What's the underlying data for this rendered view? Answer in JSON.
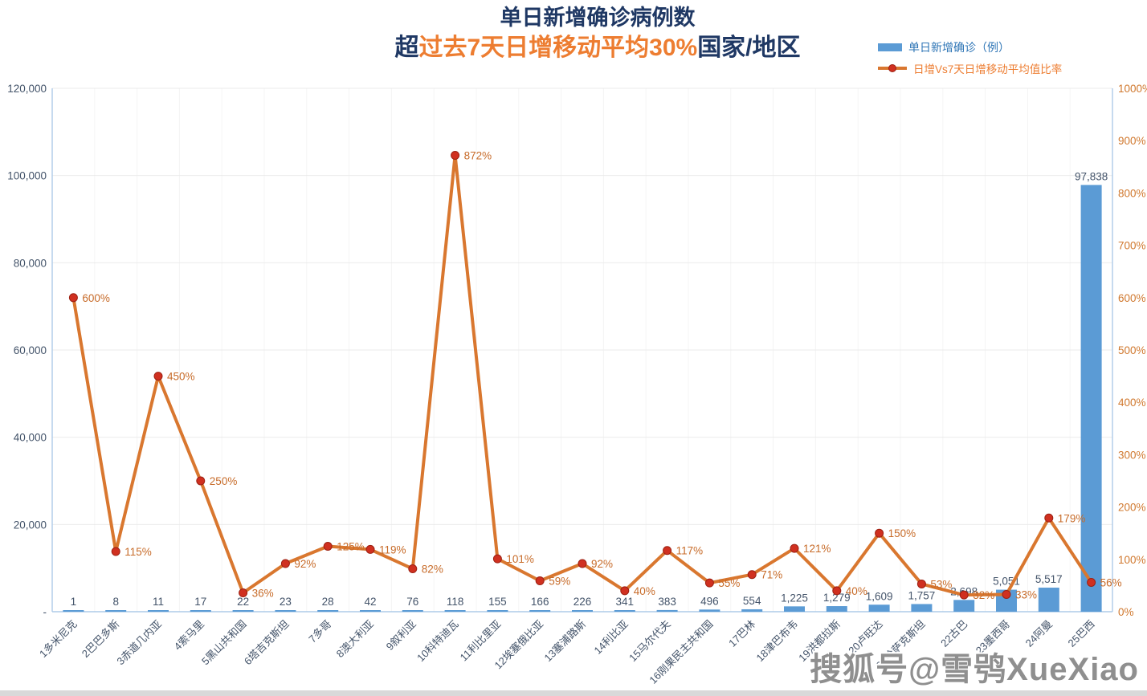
{
  "title": "单日新增确诊病例数",
  "subtitle": {
    "prefix": "超",
    "highlight": "过去7天日增移动平均30%",
    "suffix": "国家/地区"
  },
  "legend": {
    "bar_label": "单日新增确诊（例）",
    "line_label": "日增Vs7天日增移动平均值比率"
  },
  "watermark": "搜狐号@雪鸮XueXiao",
  "colors": {
    "title_navy": "#1F3864",
    "accent_orange": "#ED7D31",
    "bar": "#5B9BD5",
    "bar_label": "#44546A",
    "line": "#D9772F",
    "marker_fill": "#D03020",
    "marker_stroke": "#9C2012",
    "line_label": "#C76B29",
    "left_axis_text": "#44546A",
    "right_axis_text": "#D0782E",
    "grid_h": "#EBEBEB",
    "grid_v": "#F4F4F4",
    "plot_border": "#AECBE8",
    "x_label": "#44546A"
  },
  "chart_data": {
    "type": "bar",
    "combo": "bar+line",
    "title": "单日新增确诊病例数 超过去7天日增移动平均30%国家/地区",
    "categories": [
      "1多米尼克",
      "2巴巴多斯",
      "3赤道几内亚",
      "4索马里",
      "5黑山共和国",
      "6塔吉克斯坦",
      "7多哥",
      "8澳大利亚",
      "9叙利亚",
      "10科特迪瓦",
      "11利比里亚",
      "12埃塞俄比亚",
      "13塞浦路斯",
      "14利比亚",
      "15马尔代夫",
      "16刚果民主共和国",
      "17巴林",
      "18津巴布韦",
      "19洪都拉斯",
      "20卢旺达",
      "21哈萨克斯坦",
      "22古巴",
      "23墨西哥",
      "24阿曼",
      "25巴西"
    ],
    "series": [
      {
        "name": "单日新增确诊（例）",
        "type": "bar",
        "axis": "left",
        "values": [
          1,
          8,
          11,
          17,
          22,
          23,
          28,
          42,
          76,
          118,
          155,
          166,
          226,
          341,
          383,
          496,
          554,
          1225,
          1279,
          1609,
          1757,
          2698,
          5051,
          5517,
          97838
        ],
        "labels": [
          "1",
          "8",
          "11",
          "17",
          "22",
          "23",
          "28",
          "42",
          "76",
          "118",
          "155",
          "166",
          "226",
          "341",
          "383",
          "496",
          "554",
          "1,225",
          "1,279",
          "1,609",
          "1,757",
          "2,698",
          "5,051",
          "5,517",
          "97,838"
        ]
      },
      {
        "name": "日增Vs7天日增移动平均值比率",
        "type": "line",
        "axis": "right",
        "values": [
          600,
          115,
          450,
          250,
          36,
          92,
          125,
          119,
          82,
          872,
          101,
          59,
          92,
          40,
          117,
          55,
          71,
          121,
          40,
          150,
          53,
          32,
          33,
          179,
          56
        ],
        "labels": [
          "600%",
          "115%",
          "450%",
          "250%",
          "36%",
          "92%",
          "125%",
          "119%",
          "82%",
          "872%",
          "101%",
          "59%",
          "92%",
          "40%",
          "117%",
          "55%",
          "71%",
          "121%",
          "40%",
          "150%",
          "53%",
          "32%",
          "33%",
          "179%",
          "56%"
        ]
      }
    ],
    "left_axis": {
      "label": "",
      "min": 0,
      "max": 120000,
      "tick_step": 20000,
      "ticks": [
        "120,000",
        "100,000",
        "80,000",
        "60,000",
        "40,000",
        "20,000",
        "-"
      ]
    },
    "right_axis": {
      "label": "",
      "min": 0,
      "max": 1000,
      "tick_step": 100,
      "ticks": [
        "1000%",
        "900%",
        "800%",
        "700%",
        "600%",
        "500%",
        "400%",
        "300%",
        "200%",
        "100%",
        "0%"
      ]
    },
    "grid": true,
    "legend_position": "top-right",
    "x_label_rotation_deg": -45
  }
}
